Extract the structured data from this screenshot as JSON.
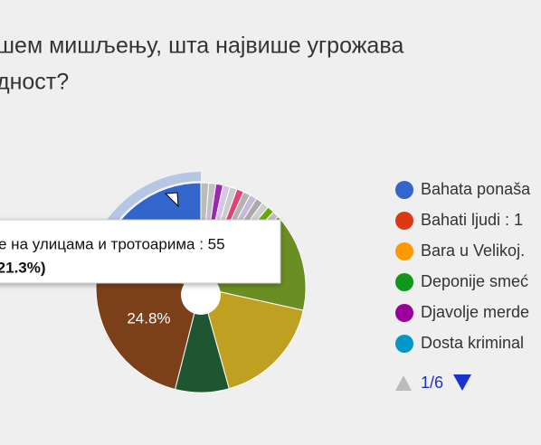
{
  "chart_data": {
    "type": "pie",
    "title_lines": [
      "шем мишљењу, шта највише угрожава",
      "дност?"
    ],
    "values": [
      1.2,
      1.1,
      1.1,
      1.1,
      1.1,
      1.1,
      1.1,
      1.1,
      1.1,
      1.1,
      1.1,
      1.0,
      15.3,
      17.2,
      8.3,
      24.8,
      21.3
    ],
    "colors": [
      "#bbbbbb",
      "#c2c2c2",
      "#9c27b0",
      "#d4c8e6",
      "#cccccc",
      "#dd4477",
      "#b3b3b3",
      "#c7b8d8",
      "#aaaaaa",
      "#d0d0d0",
      "#66aa00",
      "#bfbfbf",
      "#6b8e23",
      "#c0a020",
      "#1e5631",
      "#7b3f1a",
      "#3366cc"
    ],
    "value_labels": {
      "15": "24.8%"
    },
    "highlighted": 16,
    "tooltip": [
      "е на улицама и тротоарима : 55",
      "(21.3%)"
    ],
    "legend": [
      {
        "name": "Bahata ponaša",
        "color": "#3366cc"
      },
      {
        "name": "Bahati ljudi : 1",
        "color": "#dc3912"
      },
      {
        "name": "Bara u Velikoj.",
        "color": "#ff9900"
      },
      {
        "name": "Deponije smeć",
        "color": "#109618"
      },
      {
        "name": "Djavolje merde",
        "color": "#990099"
      },
      {
        "name": "Dosta kriminal",
        "color": "#0099c6"
      }
    ],
    "page": "1/6"
  }
}
